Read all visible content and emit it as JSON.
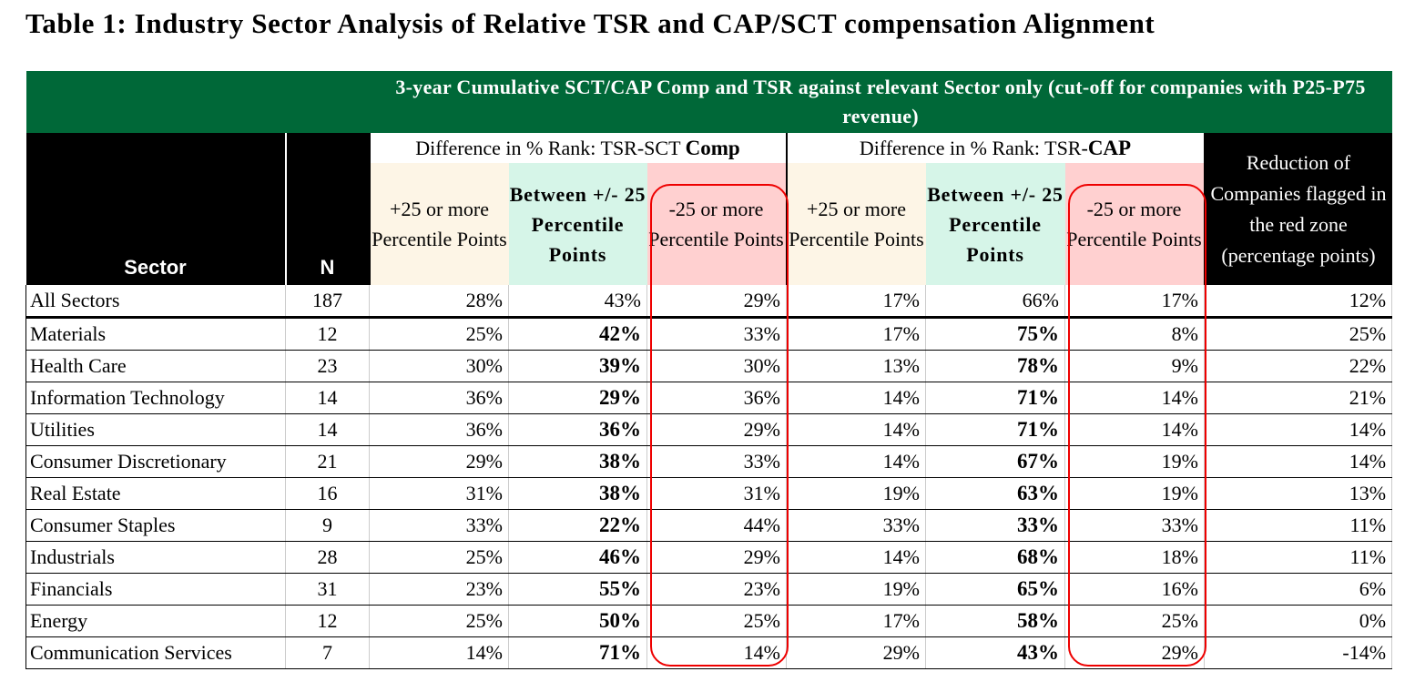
{
  "title": "Table 1: Industry Sector Analysis of Relative TSR and CAP/SCT compensation Alignment",
  "banner": "3-year Cumulative SCT/CAP Comp and TSR against relevant Sector only (cut-off for companies with P25-P75 revenue)",
  "group_sct": {
    "prefix": "Difference in % Rank: TSR-SCT ",
    "bold": "Comp"
  },
  "group_cap": {
    "prefix": "Difference in % Rank: TSR-",
    "bold": "CAP"
  },
  "headers": {
    "sector": "Sector",
    "n": "N",
    "plus25": "+25 or more Percentile Points",
    "between": "Between +/- 25 Percentile Points",
    "minus25": "-25 or more Percentile Points",
    "reduction": "Reduction of Companies flagged in the red zone (percentage points)"
  },
  "colors": {
    "banner": "#006838",
    "cream": "#fdf5e6",
    "mint": "#d6f5e8",
    "pink": "#ffd0d0",
    "highlight": "#e00000"
  },
  "rows": [
    {
      "sector": "All Sectors",
      "n": "187",
      "sct_plus": "28%",
      "sct_between": "43%",
      "sct_minus": "29%",
      "cap_plus": "17%",
      "cap_between": "66%",
      "cap_minus": "17%",
      "reduction": "12%"
    },
    {
      "sector": "Materials",
      "n": "12",
      "sct_plus": "25%",
      "sct_between": "42%",
      "sct_minus": "33%",
      "cap_plus": "17%",
      "cap_between": "75%",
      "cap_minus": "8%",
      "reduction": "25%"
    },
    {
      "sector": "Health Care",
      "n": "23",
      "sct_plus": "30%",
      "sct_between": "39%",
      "sct_minus": "30%",
      "cap_plus": "13%",
      "cap_between": "78%",
      "cap_minus": "9%",
      "reduction": "22%"
    },
    {
      "sector": "Information Technology",
      "n": "14",
      "sct_plus": "36%",
      "sct_between": "29%",
      "sct_minus": "36%",
      "cap_plus": "14%",
      "cap_between": "71%",
      "cap_minus": "14%",
      "reduction": "21%"
    },
    {
      "sector": "Utilities",
      "n": "14",
      "sct_plus": "36%",
      "sct_between": "36%",
      "sct_minus": "29%",
      "cap_plus": "14%",
      "cap_between": "71%",
      "cap_minus": "14%",
      "reduction": "14%"
    },
    {
      "sector": "Consumer Discretionary",
      "n": "21",
      "sct_plus": "29%",
      "sct_between": "38%",
      "sct_minus": "33%",
      "cap_plus": "14%",
      "cap_between": "67%",
      "cap_minus": "19%",
      "reduction": "14%"
    },
    {
      "sector": "Real Estate",
      "n": "16",
      "sct_plus": "31%",
      "sct_between": "38%",
      "sct_minus": "31%",
      "cap_plus": "19%",
      "cap_between": "63%",
      "cap_minus": "19%",
      "reduction": "13%"
    },
    {
      "sector": "Consumer Staples",
      "n": "9",
      "sct_plus": "33%",
      "sct_between": "22%",
      "sct_minus": "44%",
      "cap_plus": "33%",
      "cap_between": "33%",
      "cap_minus": "33%",
      "reduction": "11%"
    },
    {
      "sector": "Industrials",
      "n": "28",
      "sct_plus": "25%",
      "sct_between": "46%",
      "sct_minus": "29%",
      "cap_plus": "14%",
      "cap_between": "68%",
      "cap_minus": "18%",
      "reduction": "11%"
    },
    {
      "sector": "Financials",
      "n": "31",
      "sct_plus": "23%",
      "sct_between": "55%",
      "sct_minus": "23%",
      "cap_plus": "19%",
      "cap_between": "65%",
      "cap_minus": "16%",
      "reduction": "6%"
    },
    {
      "sector": "Energy",
      "n": "12",
      "sct_plus": "25%",
      "sct_between": "50%",
      "sct_minus": "25%",
      "cap_plus": "17%",
      "cap_between": "58%",
      "cap_minus": "25%",
      "reduction": "0%"
    },
    {
      "sector": "Communication Services",
      "n": "7",
      "sct_plus": "14%",
      "sct_between": "71%",
      "sct_minus": "14%",
      "cap_plus": "29%",
      "cap_between": "43%",
      "cap_minus": "29%",
      "reduction": "-14%"
    }
  ]
}
